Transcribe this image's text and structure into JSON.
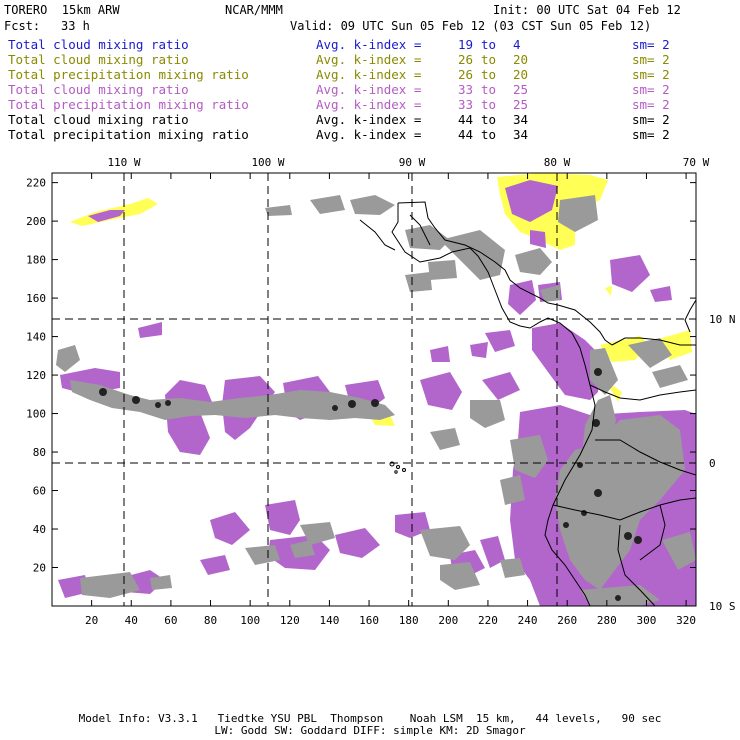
{
  "header": {
    "model": "TORERO  15km ARW",
    "center": "NCAR/MMM",
    "init": "Init: 00 UTC Sat 04 Feb 12",
    "fcst_label": "Fcst:",
    "fcst_value": "33 h",
    "valid": "Valid: 09 UTC Sun 05 Feb 12 (03 CST Sun 05 Feb 12)"
  },
  "legend": [
    {
      "field": "Total cloud mixing ratio",
      "index": "Avg. k-index =",
      "from": "19",
      "to_word": "to",
      "to": "4",
      "sm": "sm= 2",
      "color": "#1a1acc"
    },
    {
      "field": "Total cloud mixing ratio",
      "index": "Avg. k-index =",
      "from": "26",
      "to_word": "to",
      "to": "20",
      "sm": "sm= 2",
      "color": "#8a8a00"
    },
    {
      "field": "Total precipitation mixing ratio",
      "index": "Avg. k-index =",
      "from": "26",
      "to_word": "to",
      "to": "20",
      "sm": "sm= 2",
      "color": "#8a8a00"
    },
    {
      "field": "Total cloud mixing ratio",
      "index": "Avg. k-index =",
      "from": "33",
      "to_word": "to",
      "to": "25",
      "sm": "sm= 2",
      "color": "#b45bc4"
    },
    {
      "field": "Total precipitation mixing ratio",
      "index": "Avg. k-index =",
      "from": "33",
      "to_word": "to",
      "to": "25",
      "sm": "sm= 2",
      "color": "#b45bc4"
    },
    {
      "field": "Total cloud mixing ratio",
      "index": "Avg. k-index =",
      "from": "44",
      "to_word": "to",
      "to": "34",
      "sm": "sm= 2",
      "color": "#000000"
    },
    {
      "field": "Total precipitation mixing ratio",
      "index": "Avg. k-index =",
      "from": "44",
      "to_word": "to",
      "to": "34",
      "sm": "sm= 2",
      "color": "#000000"
    }
  ],
  "map": {
    "lon_labels": [
      "110 W",
      "100 W",
      "90 W",
      "80 W",
      "70 W"
    ],
    "lat_labels": [
      "10 N",
      "0",
      "10 S"
    ],
    "x_ticks": [
      "20",
      "40",
      "60",
      "80",
      "100",
      "120",
      "140",
      "160",
      "180",
      "200",
      "220",
      "240",
      "260",
      "280",
      "300",
      "320"
    ],
    "y_ticks": [
      "20",
      "40",
      "60",
      "80",
      "100",
      "120",
      "140",
      "160",
      "180",
      "200",
      "220"
    ],
    "colors": {
      "yellow": "#ffff55",
      "purple": "#b266cc",
      "gray": "#9a9a9a",
      "dark": "#222222"
    }
  },
  "footer": {
    "line1": "Model Info: V3.3.1   Tiedtke YSU PBL  Thompson    Noah LSM  15 km,   44 levels,   90 sec",
    "line2": "LW: Godd SW: Goddard DIFF: simple KM: 2D Smagor"
  }
}
